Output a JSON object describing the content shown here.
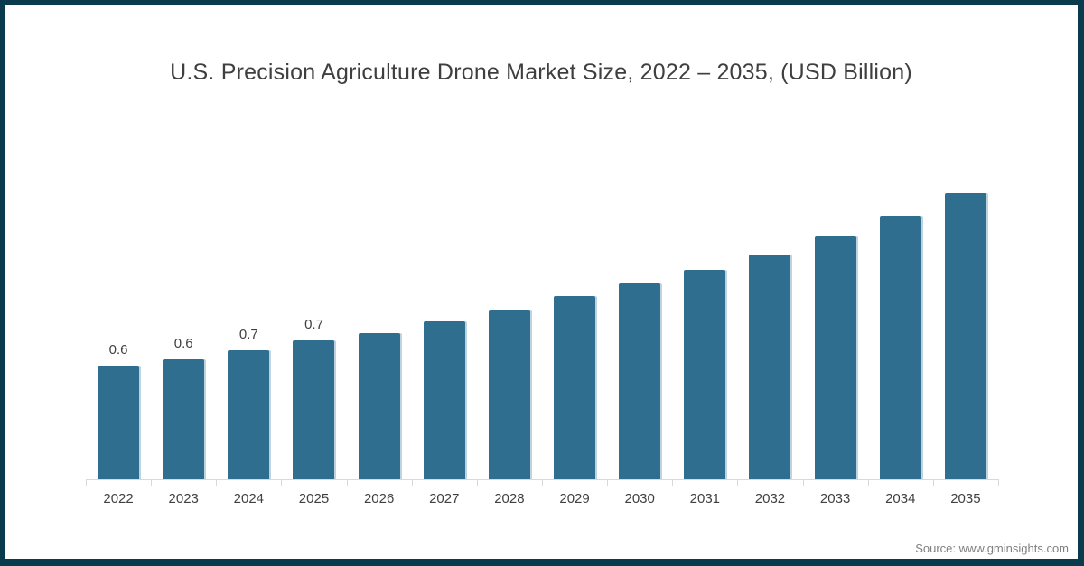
{
  "chart": {
    "title": "U.S. Precision Agriculture Drone Market Size, 2022 – 2035, (USD Billion)"
  },
  "source": "Source: www.gminsights.com",
  "colors": {
    "bar": "#2F6E8E",
    "bar_edge_highlight": "#BDD3E0",
    "frame_border": "#0A3B4D",
    "axis_line": "#D9D9D9",
    "text": "#404040",
    "title_text": "#3F3F3F",
    "source_text": "#7F7F7F",
    "background": "#FFFFFF"
  },
  "chart_data": {
    "type": "bar",
    "title": "U.S. Precision Agriculture Drone Market Size, 2022 – 2035, (USD Billion)",
    "xlabel": "",
    "ylabel": "",
    "unit": "USD Billion",
    "categories": [
      "2022",
      "2023",
      "2024",
      "2025",
      "2026",
      "2027",
      "2028",
      "2029",
      "2030",
      "2031",
      "2032",
      "2033",
      "2034",
      "2035"
    ],
    "values": [
      0.6,
      0.63,
      0.68,
      0.73,
      0.77,
      0.83,
      0.89,
      0.96,
      1.03,
      1.1,
      1.18,
      1.28,
      1.38,
      1.5
    ],
    "data_labels": [
      "0.6",
      "0.6",
      "0.7",
      "0.7",
      "",
      "",
      "",
      "",
      "",
      "",
      "",
      "",
      "",
      ""
    ],
    "ylim": [
      0,
      1.6
    ],
    "y_axis_visible": false,
    "grid": false,
    "legend": false
  }
}
